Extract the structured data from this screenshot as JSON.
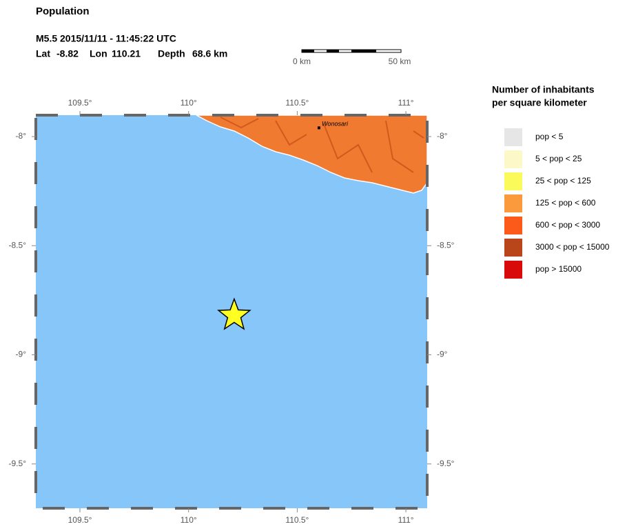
{
  "header": {
    "title": "Population",
    "event": "M5.5  2015/11/11 - 11:45:22 UTC",
    "lat_label": "Lat",
    "lon_label": "Lon",
    "depth_label": "Depth",
    "depth": "68.6 km"
  },
  "epicenter": {
    "lat": -8.82,
    "lon": 110.21
  },
  "scale_bar": {
    "start": "0 km",
    "end": "50 km"
  },
  "map": {
    "lon_lim": [
      109.297,
      111.098
    ],
    "lat_lim": [
      -9.703,
      -7.902
    ],
    "lon_ticks": [
      {
        "value": 109.5,
        "label": "109.5°"
      },
      {
        "value": 110,
        "label": "110°"
      },
      {
        "value": 110.5,
        "label": "110.5°"
      },
      {
        "value": 111,
        "label": "111°"
      }
    ],
    "lat_ticks": [
      {
        "value": -8,
        "label": "-8°"
      },
      {
        "value": -8.5,
        "label": "-8.5°"
      },
      {
        "value": -9,
        "label": "-9°"
      },
      {
        "value": -9.5,
        "label": "-9.5°"
      }
    ],
    "places": [
      {
        "name": "Wonosari",
        "lon": 110.6,
        "lat": -7.96
      }
    ]
  },
  "legend": {
    "title_line1": "Number of inhabitants",
    "title_line2": "per square kilometer",
    "items": [
      {
        "label": "pop < 5",
        "color": "#e6e6e6"
      },
      {
        "label": "5 < pop < 25",
        "color": "#fcf8c8"
      },
      {
        "label": "25 < pop < 125",
        "color": "#fafa5a"
      },
      {
        "label": "125 < pop < 600",
        "color": "#fb9a3c"
      },
      {
        "label": "600 < pop < 3000",
        "color": "#fb5a1a"
      },
      {
        "label": "3000 < pop < 15000",
        "color": "#b8461a"
      },
      {
        "label": "pop > 15000",
        "color": "#d90a0a"
      }
    ]
  }
}
